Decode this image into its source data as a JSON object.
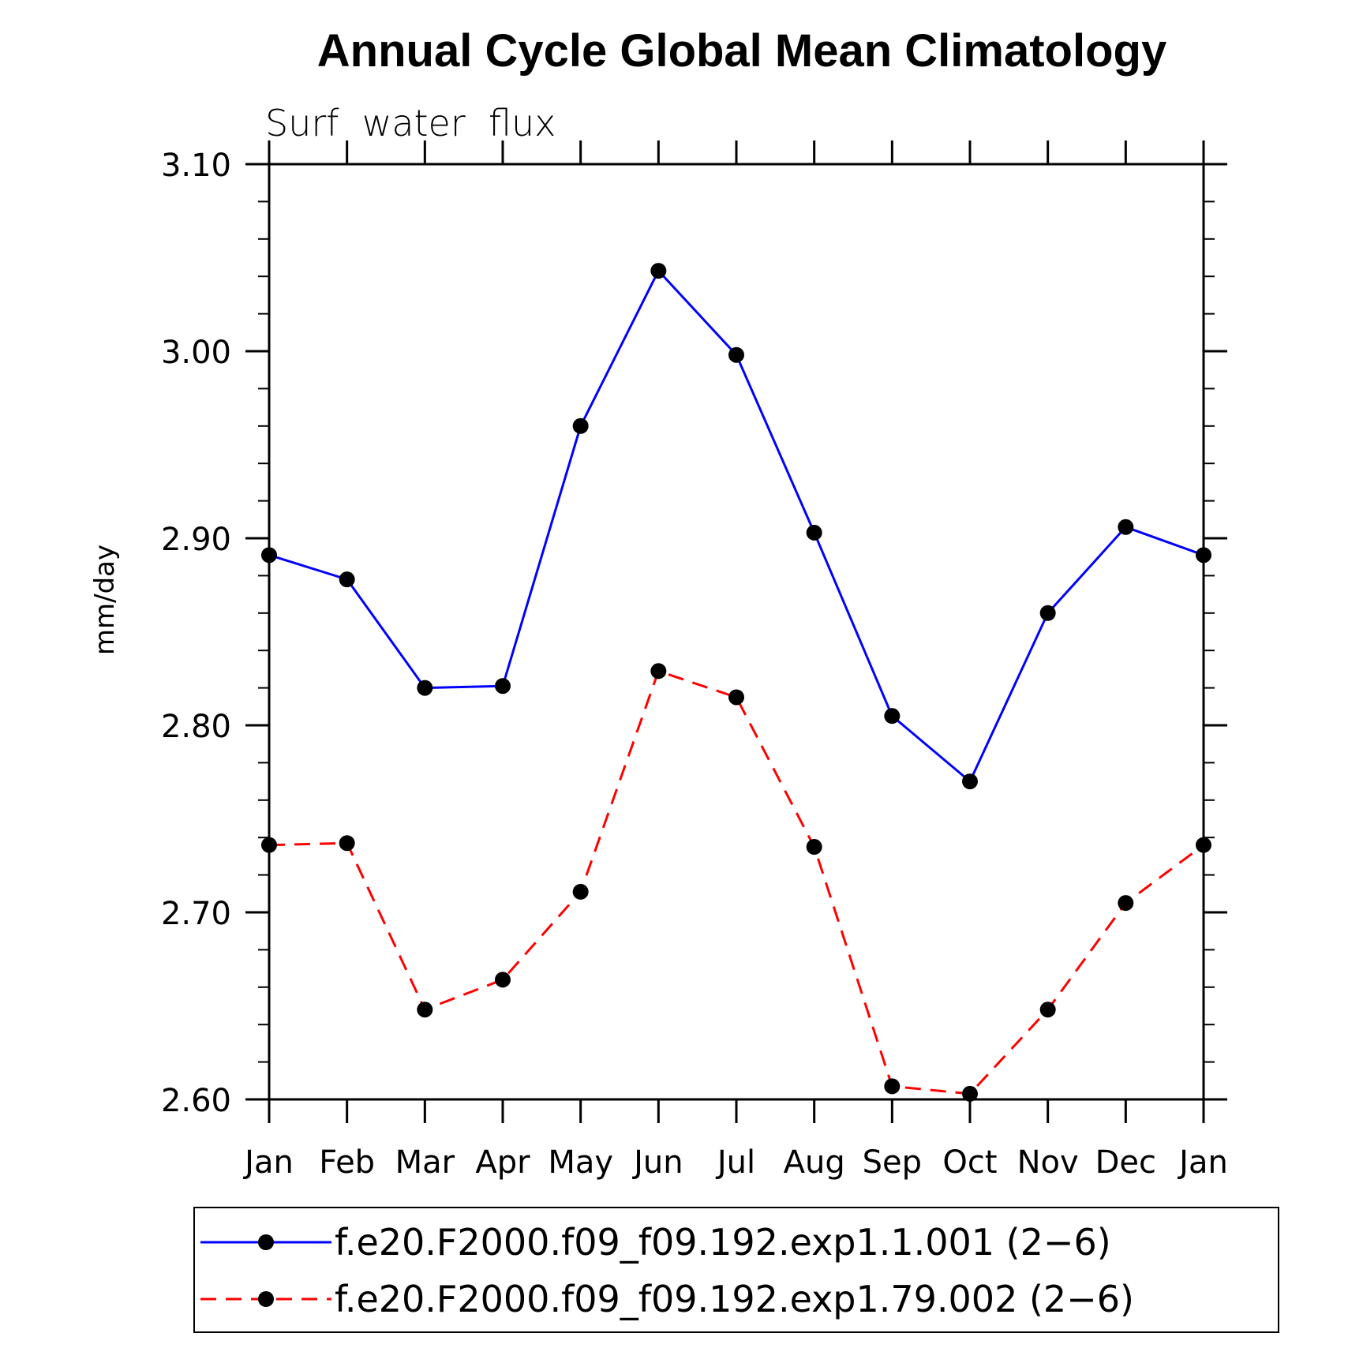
{
  "chart_data": {
    "type": "line",
    "title": "Annual Cycle Global Mean Climatology",
    "subtitle": "Surf  water  flux",
    "ylabel": "mm/day",
    "xlabel": "",
    "ylim": [
      2.6,
      3.1
    ],
    "y_major_ticks": [
      2.6,
      2.7,
      2.8,
      2.9,
      3.0,
      3.1
    ],
    "y_tick_labels": [
      "2.60",
      "2.70",
      "2.80",
      "2.90",
      "3.00",
      "3.10"
    ],
    "y_minor_step": 0.02,
    "categories": [
      "Jan",
      "Feb",
      "Mar",
      "Apr",
      "May",
      "Jun",
      "Jul",
      "Aug",
      "Sep",
      "Oct",
      "Nov",
      "Dec",
      "Jan"
    ],
    "grid": false,
    "legend_position": "bottom",
    "series": [
      {
        "name": "f.e20.F2000.f09_f09.192.exp1.1.001 (2−6)",
        "color": "#0000ff",
        "dash": "solid",
        "marker": "filled-circle",
        "values": [
          2.891,
          2.878,
          2.82,
          2.821,
          2.96,
          3.043,
          2.998,
          2.903,
          2.805,
          2.77,
          2.86,
          2.906,
          2.891
        ]
      },
      {
        "name": "f.e20.F2000.f09_f09.192.exp1.79.002 (2−6)",
        "color": "#ff0000",
        "dash": "dashed",
        "marker": "filled-circle",
        "values": [
          2.736,
          2.737,
          2.648,
          2.664,
          2.711,
          2.829,
          2.815,
          2.735,
          2.607,
          2.603,
          2.648,
          2.705,
          2.736
        ]
      }
    ]
  }
}
